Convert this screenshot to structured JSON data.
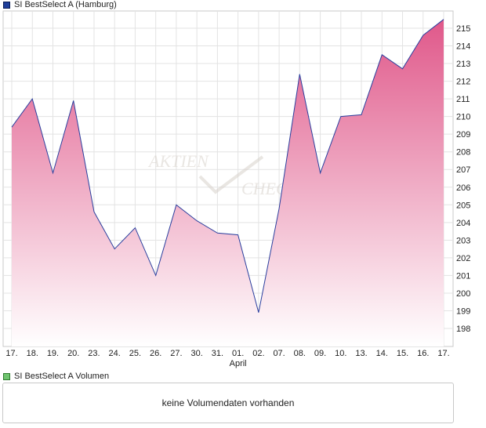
{
  "price_legend": {
    "label": "SI BestSelect A (Hamburg)",
    "color": "#1f3f9a"
  },
  "volume_legend": {
    "label": "SI BestSelect A Volumen",
    "color": "#6fc46f"
  },
  "volume_panel": {
    "message": "keine Volumendaten vorhanden"
  },
  "watermark": {
    "line1": "AKTIEN",
    "line2": "CHECK"
  },
  "chart_data": {
    "type": "area",
    "x": [
      "17.",
      "18.",
      "19.",
      "20.",
      "23.",
      "24.",
      "25.",
      "26.",
      "27.",
      "30.",
      "31.",
      "01.",
      "02.",
      "07.",
      "08.",
      "09.",
      "10.",
      "13.",
      "14.",
      "15.",
      "16.",
      "17."
    ],
    "month_label": {
      "text": "April",
      "at_index": 11
    },
    "series": [
      {
        "name": "SI BestSelect A (Hamburg)",
        "values": [
          209.4,
          211.0,
          206.8,
          210.9,
          204.6,
          202.5,
          203.7,
          201.0,
          205.0,
          204.1,
          203.4,
          203.3,
          198.9,
          204.8,
          212.4,
          206.8,
          210.0,
          210.1,
          213.5,
          212.7,
          214.6,
          215.5
        ]
      }
    ],
    "y_ticks": [
      198,
      199,
      200,
      201,
      202,
      203,
      204,
      205,
      206,
      207,
      208,
      209,
      210,
      211,
      212,
      213,
      214,
      215
    ],
    "ylim": [
      197.3,
      215.9
    ],
    "grid": true,
    "y_axis_side": "right",
    "line_color": "#2a3f9e",
    "fill_top_color": "#e0588a",
    "fill_bottom_color": "#ffffff",
    "title": "",
    "xlabel": "",
    "ylabel": ""
  }
}
